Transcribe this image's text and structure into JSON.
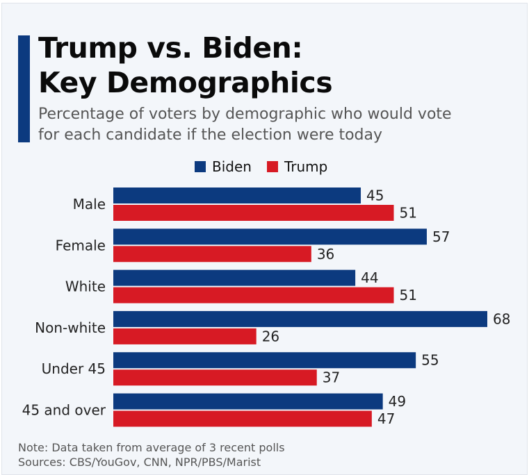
{
  "colors": {
    "accent": "#0c3a7f",
    "biden": "#0c3a7f",
    "trump": "#d71a24"
  },
  "header": {
    "title_line1": "Trump vs. Biden:",
    "title_line2": "Key Demographics",
    "subtitle_line1": "Percentage of voters by demographic who would vote",
    "subtitle_line2": "for each candidate if the election were today"
  },
  "footer": {
    "note": "Note: Data taken from average of 3 recent polls",
    "sources": "Sources: CBS/YouGov, CNN, NPR/PBS/Marist"
  },
  "chart_data": {
    "type": "bar",
    "orientation": "horizontal",
    "title": "Trump vs. Biden: Key Demographics",
    "categories": [
      "Male",
      "Female",
      "White",
      "Non-white",
      "Under 45",
      "45 and over"
    ],
    "series": [
      {
        "name": "Biden",
        "color": "#0c3a7f",
        "values": [
          45,
          57,
          44,
          68,
          55,
          49
        ]
      },
      {
        "name": "Trump",
        "color": "#d71a24",
        "values": [
          51,
          36,
          51,
          26,
          37,
          47
        ]
      }
    ],
    "xlim": [
      0,
      68
    ],
    "unit": "%",
    "legend": "top-center",
    "grid": false
  }
}
